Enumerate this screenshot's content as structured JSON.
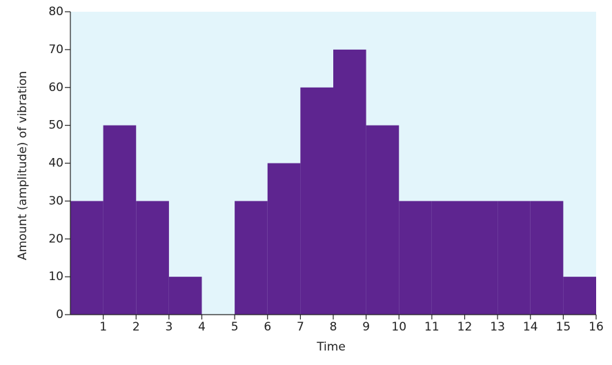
{
  "chart_data": {
    "type": "histogram",
    "x_label": "Time",
    "y_label": "Amount (amplitude) of vibration",
    "bins": [
      0,
      1,
      2,
      3,
      4,
      5,
      6,
      7,
      8,
      9,
      10,
      11,
      12,
      13,
      14,
      15,
      16
    ],
    "values": [
      30,
      50,
      30,
      10,
      0,
      30,
      40,
      60,
      70,
      50,
      30,
      30,
      30,
      30,
      30,
      10
    ],
    "color": "#5e2590",
    "background": "#e3f5fb",
    "xlim": [
      0,
      16
    ],
    "xticks": [
      1,
      2,
      3,
      4,
      5,
      6,
      7,
      8,
      9,
      10,
      11,
      12,
      13,
      14,
      15,
      16
    ],
    "ylim": [
      0,
      80
    ],
    "yticks": [
      0,
      10,
      20,
      30,
      40,
      50,
      60,
      70,
      80
    ]
  }
}
